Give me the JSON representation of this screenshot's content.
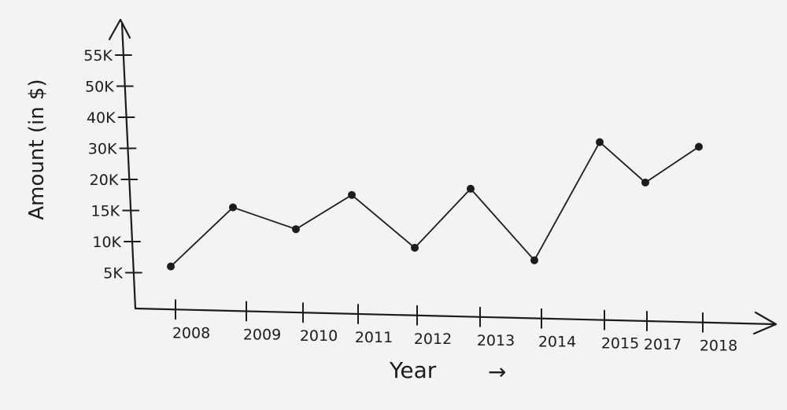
{
  "chart_data": {
    "type": "line",
    "title": "",
    "xlabel": "Year",
    "xlabel_arrow": "→",
    "ylabel": "Amount (in $)",
    "categories": [
      "2008",
      "2009",
      "2010",
      "2011",
      "2012",
      "2013",
      "2014",
      "2015",
      "2017",
      "2018"
    ],
    "y_ticks": [
      "5K",
      "10K",
      "15K",
      "20K",
      "30K",
      "40K",
      "50K",
      "55K"
    ],
    "series": [
      {
        "values": [
          6000,
          15500,
          12000,
          17500,
          9000,
          18500,
          7000,
          32000,
          19500,
          30500
        ]
      }
    ],
    "grid": false,
    "legend": "none",
    "colors": {
      "ink": "#1c1c1c",
      "paper": "#f4f3f1"
    }
  }
}
